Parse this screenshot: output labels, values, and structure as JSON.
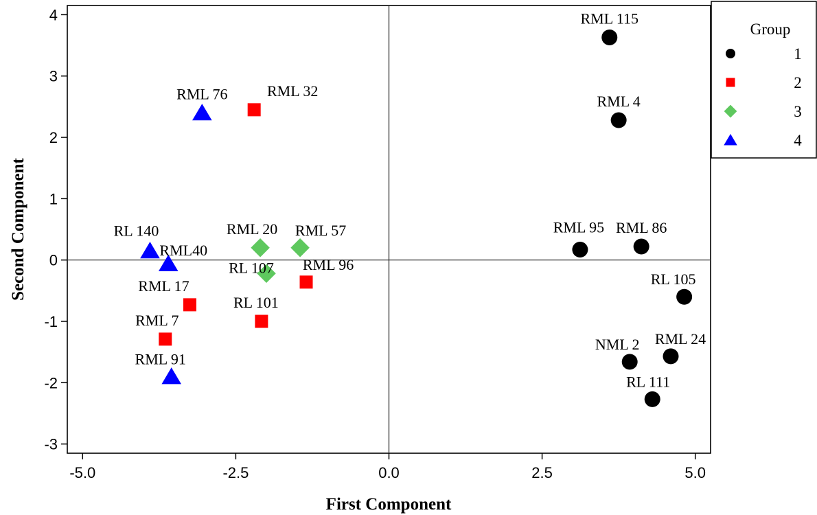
{
  "chart_data": {
    "type": "scatter",
    "title": "",
    "xlabel": "First Component",
    "ylabel": "Second Component",
    "xlim": [
      -5.25,
      5.25
    ],
    "ylim": [
      -3.15,
      4.15
    ],
    "x_ticks": [
      "-5.0",
      "-2.5",
      "0.0",
      "2.5",
      "5.0"
    ],
    "x_tick_values": [
      -5.0,
      -2.5,
      0.0,
      2.5,
      5.0
    ],
    "y_ticks": [
      "-3",
      "-2",
      "-1",
      "0",
      "1",
      "2",
      "3",
      "4"
    ],
    "y_tick_values": [
      -3,
      -2,
      -1,
      0,
      1,
      2,
      3,
      4
    ],
    "reference_lines": {
      "x": 0,
      "y": 0
    },
    "grid": false,
    "legend": {
      "title": "Group",
      "position": "right"
    },
    "series": [
      {
        "name": "1",
        "marker": "circle",
        "color": "#000000",
        "points": [
          {
            "label": "RML 115",
            "x": 3.6,
            "y": 3.63
          },
          {
            "label": "RML 4",
            "x": 3.75,
            "y": 2.28
          },
          {
            "label": "RML 95",
            "x": 3.12,
            "y": 0.17
          },
          {
            "label": "RML 86",
            "x": 4.12,
            "y": 0.22
          },
          {
            "label": "RL 105",
            "x": 4.82,
            "y": -0.6
          },
          {
            "label": "RML 24",
            "x": 4.6,
            "y": -1.57
          },
          {
            "label": "NML 2",
            "x": 3.93,
            "y": -1.66
          },
          {
            "label": "RL 111",
            "x": 4.3,
            "y": -2.27
          }
        ]
      },
      {
        "name": "2",
        "marker": "square",
        "color": "#ff0000",
        "points": [
          {
            "label": "RML 32",
            "x": -2.2,
            "y": 2.45
          },
          {
            "label": "RML 96",
            "x": -1.35,
            "y": -0.36
          },
          {
            "label": "RML 17",
            "x": -3.25,
            "y": -0.73
          },
          {
            "label": "RL 101",
            "x": -2.08,
            "y": -1.0
          },
          {
            "label": "RML 7",
            "x": -3.65,
            "y": -1.29
          }
        ]
      },
      {
        "name": "3",
        "marker": "diamond",
        "color": "#5ec85e",
        "points": [
          {
            "label": "RML 20",
            "x": -2.1,
            "y": 0.2
          },
          {
            "label": "RML 57",
            "x": -1.45,
            "y": 0.2
          },
          {
            "label": "RL 107",
            "x": -2.0,
            "y": -0.22
          }
        ]
      },
      {
        "name": "4",
        "marker": "triangle",
        "color": "#0000ff",
        "points": [
          {
            "label": "RML 76",
            "x": -3.05,
            "y": 2.4
          },
          {
            "label": "RL 140",
            "x": -3.9,
            "y": 0.15
          },
          {
            "label": "RML40",
            "x": -3.6,
            "y": -0.06
          },
          {
            "label": "RML 91",
            "x": -3.55,
            "y": -1.9
          }
        ]
      }
    ]
  }
}
